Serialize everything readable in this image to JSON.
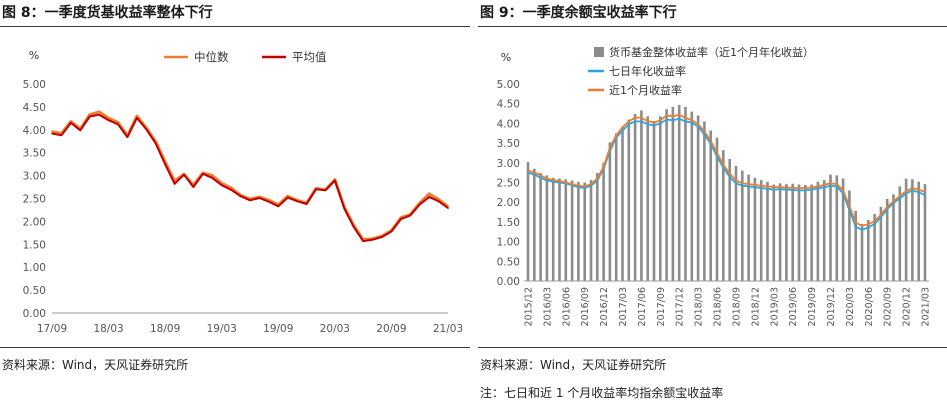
{
  "left": {
    "title": "图 8：一季度货基收益率整体下行",
    "source": "资料来源：Wind，天风证券研究所",
    "chart_data": {
      "type": "line",
      "unit_label": "%",
      "ylim": [
        0,
        5
      ],
      "yticks": [
        "0.00",
        "0.50",
        "1.00",
        "1.50",
        "2.00",
        "2.50",
        "3.00",
        "3.50",
        "4.00",
        "4.50",
        "5.00"
      ],
      "xlim": [
        0,
        42
      ],
      "xticks": [
        {
          "label": "17/09",
          "x": 0
        },
        {
          "label": "18/03",
          "x": 6
        },
        {
          "label": "18/09",
          "x": 12
        },
        {
          "label": "19/03",
          "x": 18
        },
        {
          "label": "19/09",
          "x": 24
        },
        {
          "label": "20/03",
          "x": 30
        },
        {
          "label": "20/09",
          "x": 36
        },
        {
          "label": "21/03",
          "x": 42
        }
      ],
      "grid": false,
      "legend_position": "top",
      "series": [
        {
          "name": "中位数",
          "color": "#ed7d31",
          "x": [
            0,
            1,
            2,
            3,
            4,
            5,
            6,
            7,
            8,
            9,
            10,
            11,
            12,
            13,
            14,
            15,
            16,
            17,
            18,
            19,
            20,
            21,
            22,
            23,
            24,
            25,
            26,
            27,
            28,
            29,
            30,
            31,
            32,
            33,
            34,
            35,
            36,
            37,
            38,
            39,
            40,
            41,
            42
          ],
          "values": [
            3.96,
            3.92,
            4.18,
            4.02,
            4.33,
            4.39,
            4.25,
            4.16,
            3.87,
            4.3,
            4.04,
            3.74,
            3.3,
            2.88,
            3.03,
            2.79,
            3.06,
            3.0,
            2.83,
            2.73,
            2.57,
            2.49,
            2.53,
            2.46,
            2.36,
            2.55,
            2.46,
            2.4,
            2.72,
            2.69,
            2.91,
            2.31,
            1.91,
            1.6,
            1.62,
            1.68,
            1.8,
            2.08,
            2.15,
            2.4,
            2.6,
            2.48,
            2.32
          ]
        },
        {
          "name": "平均值",
          "color": "#c00000",
          "x": [
            0,
            1,
            2,
            3,
            4,
            5,
            6,
            7,
            8,
            9,
            10,
            11,
            12,
            13,
            14,
            15,
            16,
            17,
            18,
            19,
            20,
            21,
            22,
            23,
            24,
            25,
            26,
            27,
            28,
            29,
            30,
            31,
            32,
            33,
            34,
            35,
            36,
            37,
            38,
            39,
            40,
            41,
            42
          ],
          "values": [
            3.92,
            3.88,
            4.15,
            3.99,
            4.29,
            4.33,
            4.21,
            4.12,
            3.84,
            4.26,
            4.01,
            3.7,
            3.25,
            2.82,
            3.02,
            2.75,
            3.04,
            2.95,
            2.79,
            2.69,
            2.55,
            2.46,
            2.51,
            2.43,
            2.33,
            2.52,
            2.44,
            2.38,
            2.7,
            2.68,
            2.89,
            2.28,
            1.88,
            1.57,
            1.6,
            1.66,
            1.78,
            2.05,
            2.13,
            2.37,
            2.53,
            2.44,
            2.29
          ]
        }
      ]
    }
  },
  "right": {
    "title": "图 9：一季度余额宝收益率下行",
    "source": "资料来源：Wind，天风证券研究所",
    "note": "注：七日和近 1 个月收益率均指余额宝收益率",
    "chart_data": {
      "type": "bar",
      "unit_label": "%",
      "ylim": [
        0,
        5
      ],
      "yticks": [
        "0.00",
        "0.50",
        "1.00",
        "1.50",
        "2.00",
        "2.50",
        "3.00",
        "3.50",
        "4.00",
        "4.50",
        "5.00"
      ],
      "categories": [
        "2015/12",
        "2016/01",
        "2016/02",
        "2016/03",
        "2016/04",
        "2016/05",
        "2016/06",
        "2016/07",
        "2016/08",
        "2016/09",
        "2016/10",
        "2016/11",
        "2016/12",
        "2017/01",
        "2017/02",
        "2017/03",
        "2017/04",
        "2017/05",
        "2017/06",
        "2017/07",
        "2017/08",
        "2017/09",
        "2017/10",
        "2017/11",
        "2017/12",
        "2018/01",
        "2018/02",
        "2018/03",
        "2018/04",
        "2018/05",
        "2018/06",
        "2018/07",
        "2018/08",
        "2018/09",
        "2018/10",
        "2018/11",
        "2018/12",
        "2019/01",
        "2019/02",
        "2019/03",
        "2019/04",
        "2019/05",
        "2019/06",
        "2019/07",
        "2019/08",
        "2019/09",
        "2019/10",
        "2019/11",
        "2019/12",
        "2020/01",
        "2020/02",
        "2020/03",
        "2020/04",
        "2020/05",
        "2020/06",
        "2020/07",
        "2020/08",
        "2020/09",
        "2020/10",
        "2020/11",
        "2020/12",
        "2021/01",
        "2021/02",
        "2021/03"
      ],
      "tick_labels": [
        "2015/12",
        "2016/03",
        "2016/06",
        "2016/09",
        "2016/12",
        "2017/03",
        "2017/06",
        "2017/09",
        "2017/12",
        "2018/03",
        "2018/06",
        "2018/09",
        "2018/12",
        "2019/03",
        "2019/06",
        "2019/09",
        "2019/12",
        "2020/03",
        "2020/06",
        "2020/09",
        "2020/12",
        "2021/03"
      ],
      "grid": false,
      "legend_position": "top-left",
      "series": [
        {
          "name": "货币基金整体收益率（近1个月年化收益）",
          "color": "#8c8c8c",
          "kind": "bar",
          "values": [
            3.02,
            2.85,
            2.74,
            2.68,
            2.62,
            2.6,
            2.58,
            2.55,
            2.52,
            2.5,
            2.56,
            2.74,
            3.0,
            3.52,
            3.75,
            3.92,
            4.1,
            4.24,
            4.33,
            4.18,
            4.06,
            4.18,
            4.36,
            4.42,
            4.47,
            4.42,
            4.3,
            4.2,
            4.05,
            3.82,
            3.64,
            3.32,
            3.1,
            2.92,
            2.8,
            2.7,
            2.62,
            2.56,
            2.52,
            2.45,
            2.48,
            2.46,
            2.47,
            2.45,
            2.44,
            2.45,
            2.52,
            2.56,
            2.7,
            2.68,
            2.6,
            2.3,
            1.78,
            1.45,
            1.55,
            1.7,
            1.88,
            2.08,
            2.2,
            2.4,
            2.6,
            2.58,
            2.52,
            2.46
          ]
        },
        {
          "name": "七日年化收益率",
          "color": "#2aa6df",
          "kind": "line",
          "values": [
            2.75,
            2.7,
            2.62,
            2.55,
            2.52,
            2.5,
            2.48,
            2.43,
            2.38,
            2.36,
            2.42,
            2.55,
            2.85,
            3.3,
            3.64,
            3.82,
            3.98,
            4.05,
            4.05,
            3.98,
            3.95,
            4.0,
            4.1,
            4.08,
            4.12,
            4.05,
            4.02,
            3.92,
            3.72,
            3.48,
            3.16,
            2.88,
            2.64,
            2.48,
            2.42,
            2.4,
            2.38,
            2.36,
            2.34,
            2.32,
            2.33,
            2.32,
            2.31,
            2.3,
            2.3,
            2.32,
            2.35,
            2.38,
            2.42,
            2.4,
            2.22,
            1.8,
            1.38,
            1.3,
            1.36,
            1.45,
            1.62,
            1.82,
            1.98,
            2.1,
            2.22,
            2.3,
            2.25,
            2.18
          ]
        },
        {
          "name": "近1个月收益率",
          "color": "#ed7d31",
          "kind": "line",
          "values": [
            2.8,
            2.76,
            2.68,
            2.6,
            2.56,
            2.54,
            2.5,
            2.46,
            2.42,
            2.4,
            2.46,
            2.6,
            2.9,
            3.38,
            3.7,
            3.9,
            4.05,
            4.15,
            4.14,
            4.06,
            4.02,
            4.08,
            4.2,
            4.18,
            4.22,
            4.14,
            4.08,
            3.98,
            3.8,
            3.55,
            3.25,
            2.95,
            2.72,
            2.55,
            2.48,
            2.46,
            2.44,
            2.42,
            2.4,
            2.38,
            2.38,
            2.37,
            2.36,
            2.36,
            2.36,
            2.37,
            2.4,
            2.44,
            2.48,
            2.46,
            2.3,
            1.9,
            1.48,
            1.4,
            1.44,
            1.52,
            1.68,
            1.88,
            2.02,
            2.16,
            2.28,
            2.36,
            2.32,
            2.26
          ]
        }
      ]
    }
  }
}
